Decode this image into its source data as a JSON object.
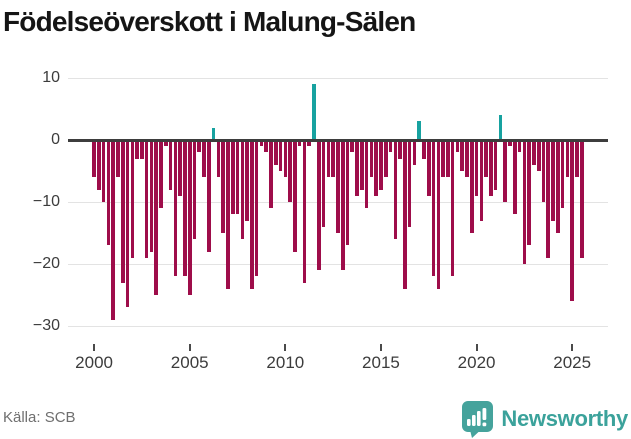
{
  "title": "Födelseöverskott i Malung-Sälen",
  "footer": {
    "source": "Källa: SCB",
    "brand": "Newsworthy"
  },
  "chart_data": {
    "type": "bar",
    "title": "Födelseöverskott i Malung-Sälen",
    "frequency": "quarterly",
    "start": "2000-Q1",
    "end": "2025-Q3",
    "values": [
      -6,
      -8,
      -10,
      -17,
      -29,
      -6,
      -23,
      -27,
      -19,
      -3,
      -3,
      -19,
      -18,
      -25,
      -11,
      -1,
      -8,
      -22,
      -9,
      -22,
      -25,
      -16,
      -2,
      -6,
      -18,
      2,
      -6,
      -15,
      -24,
      -12,
      -12,
      -16,
      -13,
      -24,
      -22,
      -1,
      -2,
      -11,
      -4,
      -5,
      -6,
      -10,
      -18,
      -1,
      -23,
      -1,
      9,
      -21,
      -14,
      -6,
      -6,
      -15,
      -21,
      -17,
      -2,
      -9,
      -8,
      -11,
      -6,
      -9,
      -8,
      -6,
      -2,
      -16,
      -3,
      -24,
      -14,
      -4,
      3,
      -3,
      -9,
      -22,
      -24,
      -6,
      -6,
      -22,
      -2,
      -5,
      -6,
      -15,
      -9,
      -13,
      -6,
      -9,
      -8,
      4,
      -10,
      -1,
      -12,
      -2,
      -20,
      -17,
      -4,
      -5,
      -10,
      -19,
      -13,
      -15,
      -11,
      -6,
      -26,
      -6,
      -19
    ],
    "x_tick_years": [
      2000,
      2005,
      2010,
      2015,
      2020,
      2025
    ],
    "y_ticks": [
      {
        "value": 10,
        "label": "10"
      },
      {
        "value": 0,
        "label": "0"
      },
      {
        "value": -10,
        "label": "−10"
      },
      {
        "value": -20,
        "label": "−20"
      },
      {
        "value": -30,
        "label": "−30"
      }
    ],
    "ylim": [
      -30,
      10
    ],
    "grid": "horizontal",
    "legend": "none",
    "colors": {
      "negative": "#9e0d4a",
      "positive": "#17a2a0",
      "axis": "#3d3d3d",
      "gridline": "#e3e3e3",
      "brand_teal": "#3ba29b"
    },
    "source": "SCB"
  }
}
